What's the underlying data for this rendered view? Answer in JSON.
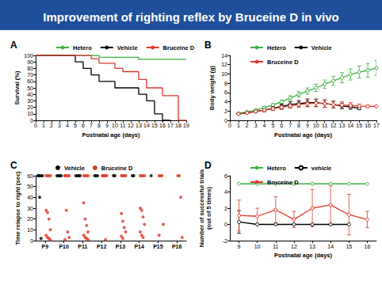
{
  "title": "Improvement of righting reflex by Bruceine D in vivo",
  "chart_data": [
    {
      "title": "A",
      "type": "step",
      "xlabel": "Postnatal age (days)",
      "ylabel": "Survival (%)",
      "x": [
        0,
        1,
        2,
        3,
        4,
        5,
        6,
        7,
        8,
        9,
        10,
        11,
        12,
        13,
        14,
        15,
        16,
        17,
        18,
        19
      ],
      "xlim": [
        0,
        19
      ],
      "xticks": [
        0,
        1,
        2,
        3,
        4,
        5,
        6,
        7,
        8,
        9,
        10,
        11,
        12,
        13,
        14,
        15,
        16,
        17,
        18,
        19
      ],
      "ylim": [
        0,
        100
      ],
      "yticks": [
        0,
        10,
        20,
        30,
        40,
        50,
        60,
        70,
        80,
        90,
        100
      ],
      "grid": false,
      "legend": "top",
      "series": [
        {
          "name": "Hetero",
          "color": "#3cb043",
          "values": [
            100,
            100,
            100,
            100,
            100,
            100,
            100,
            100,
            97,
            97,
            97,
            97,
            97,
            94,
            94,
            94,
            94,
            94,
            94,
            94
          ]
        },
        {
          "name": "Vehicle",
          "color": "#000000",
          "values": [
            100,
            100,
            100,
            100,
            100,
            90,
            80,
            70,
            60,
            60,
            50,
            50,
            50,
            40,
            30,
            10,
            0,
            null,
            null,
            null
          ]
        },
        {
          "name": "Bruceine D",
          "color": "#e0392b",
          "values": [
            100,
            100,
            100,
            100,
            100,
            100,
            100,
            95,
            88,
            88,
            80,
            75,
            75,
            63,
            50,
            50,
            38,
            38,
            0,
            null
          ]
        }
      ]
    },
    {
      "title": "B",
      "type": "line",
      "xlabel": "Postnatal age (days)",
      "ylabel": "Body weight (g)",
      "x": [
        1,
        2,
        3,
        4,
        5,
        6,
        7,
        8,
        9,
        10,
        11,
        12,
        13,
        14,
        15,
        16,
        17
      ],
      "xlim": [
        0,
        17
      ],
      "xticks": [
        0,
        1,
        2,
        3,
        4,
        5,
        6,
        7,
        8,
        9,
        10,
        11,
        12,
        13,
        14,
        15,
        16,
        17
      ],
      "ylim": [
        0,
        14
      ],
      "yticks": [
        0,
        2,
        4,
        6,
        8,
        10,
        12,
        14
      ],
      "grid": false,
      "legend": "top",
      "marker": "circle",
      "series": [
        {
          "name": "Hetero",
          "color": "#3cb043",
          "values": [
            1.5,
            1.8,
            2.2,
            2.7,
            3.3,
            4.0,
            4.8,
            5.6,
            6.3,
            7.0,
            7.8,
            8.5,
            9.2,
            9.9,
            10.4,
            10.8,
            11.3
          ],
          "errors": [
            0.1,
            0.1,
            0.2,
            0.3,
            0.3,
            0.4,
            0.5,
            0.6,
            0.7,
            0.8,
            0.9,
            1.0,
            1.1,
            1.2,
            1.3,
            1.5,
            1.6
          ]
        },
        {
          "name": "Vehicle",
          "color": "#000000",
          "values": [
            1.4,
            1.6,
            1.9,
            2.2,
            2.6,
            3.0,
            3.4,
            3.6,
            3.8,
            3.8,
            3.6,
            3.4,
            3.1,
            2.9,
            2.6,
            null,
            null
          ],
          "errors": [
            0.1,
            0.1,
            0.2,
            0.3,
            0.4,
            0.5,
            0.6,
            0.7,
            0.8,
            0.8,
            0.8,
            0.7,
            0.6,
            0.5,
            0.3,
            null,
            null
          ]
        },
        {
          "name": "Bruceine D",
          "color": "#e0392b",
          "values": [
            1.4,
            1.6,
            1.9,
            2.2,
            2.5,
            2.8,
            3.1,
            3.4,
            3.6,
            3.7,
            3.6,
            3.4,
            3.3,
            3.2,
            3.1,
            3.0,
            3.0
          ],
          "errors": [
            0.1,
            0.1,
            0.2,
            0.3,
            0.4,
            0.5,
            0.5,
            0.6,
            0.7,
            0.8,
            0.8,
            0.8,
            0.7,
            0.6,
            0.4,
            0.3,
            0.2
          ]
        }
      ]
    },
    {
      "title": "C",
      "type": "scatter",
      "ylabel": "Time relapse to right (sec)",
      "categories": [
        "P9",
        "P10",
        "P11",
        "P12",
        "P13",
        "P14",
        "P15",
        "P16"
      ],
      "ylim": [
        0,
        60
      ],
      "yticks": [
        0,
        10,
        20,
        30,
        40,
        50,
        60
      ],
      "grid": false,
      "legend": "top",
      "marker": "circle",
      "series": [
        {
          "name": "Vehicle",
          "color": "#000000",
          "values": [
            [
              60,
              60,
              60,
              60,
              60,
              40,
              2
            ],
            [
              60,
              60,
              60,
              60
            ],
            [
              60,
              60,
              60,
              60
            ],
            [
              60,
              60,
              60
            ],
            [
              60,
              60
            ],
            [
              60,
              60
            ],
            [
              60
            ],
            []
          ]
        },
        {
          "name": "Bruceine D",
          "color": "#e0392b",
          "values": [
            [
              60,
              60,
              60,
              60,
              28,
              26,
              20,
              10,
              5,
              3,
              2,
              1
            ],
            [
              60,
              60,
              60,
              60,
              60,
              28,
              8,
              3,
              1
            ],
            [
              60,
              60,
              60,
              60,
              35,
              20,
              14,
              8,
              5,
              3,
              2,
              1
            ],
            [
              60,
              60,
              60,
              60,
              60,
              60,
              1
            ],
            [
              60,
              60,
              60,
              60,
              25,
              18,
              12,
              8,
              4,
              2
            ],
            [
              60,
              60,
              60,
              60,
              30,
              28,
              22,
              15,
              8,
              5,
              3
            ],
            [
              60,
              60,
              60,
              15,
              5
            ],
            [
              60,
              60,
              40,
              3
            ]
          ]
        }
      ]
    },
    {
      "title": "D",
      "type": "line",
      "xlabel": "Postnatal age (days)",
      "ylabel": "Number of successful trials\n(out of 5 times)",
      "categories": [
        "9",
        "10",
        "11",
        "12",
        "13",
        "14",
        "15",
        "16"
      ],
      "ylim": [
        -2,
        6
      ],
      "yticks": [
        -2,
        0,
        2,
        4,
        6
      ],
      "grid": false,
      "legend": "top",
      "marker": "circle",
      "series": [
        {
          "name": "Hetero",
          "color": "#3cb043",
          "values": [
            5,
            5,
            5,
            5,
            5,
            5,
            5,
            5
          ]
        },
        {
          "name": "vehicle",
          "color": "#000000",
          "values": [
            0.3,
            0,
            0,
            0,
            0,
            0,
            0,
            null
          ],
          "errors": [
            1.4,
            0,
            0,
            0,
            0,
            0,
            0,
            null
          ]
        },
        {
          "name": "Bruceine D",
          "color": "#e0392b",
          "values": [
            1.1,
            1.0,
            1.8,
            0.6,
            2.0,
            2.4,
            1.2,
            0.6
          ],
          "errors": [
            1.9,
            1.0,
            1.6,
            1.0,
            2.3,
            2.4,
            2.5,
            1.0
          ]
        }
      ]
    }
  ]
}
